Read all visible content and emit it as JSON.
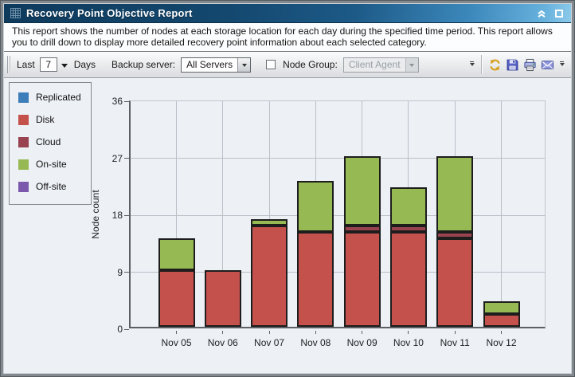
{
  "window": {
    "title": "Recovery Point Objective Report",
    "controls": {
      "collapse": "collapse",
      "maximize": "maximize"
    }
  },
  "description": "This report shows the number of nodes at each storage location for each day during the specified time period. This report allows you to drill down to display more detailed recovery point information about each selected category.",
  "toolbar": {
    "last_label": "Last",
    "last_value": "7",
    "days_label": "Days",
    "backup_server_label": "Backup server:",
    "backup_server_value": "All Servers",
    "node_group_checked": false,
    "node_group_label": "Node Group:",
    "node_group_value": "Client Agent",
    "icons": [
      "refresh-icon",
      "save-icon",
      "print-icon",
      "email-icon"
    ]
  },
  "colors": {
    "titlebar_dark": "#0e3a5c",
    "titlebar_light": "#67b1dd",
    "content_bg": "#edf1f6",
    "grid": "#bcc0c6",
    "axis": "#5c6064"
  },
  "chart_data": {
    "type": "bar",
    "stacked": true,
    "title": "",
    "xlabel": "",
    "ylabel": "Node count",
    "ylim": [
      0,
      36
    ],
    "yticks": [
      0,
      9,
      18,
      27,
      36
    ],
    "grid": true,
    "legend_position": "top-left",
    "categories": [
      "Nov 05",
      "Nov 06",
      "Nov 07",
      "Nov 08",
      "Nov 09",
      "Nov 10",
      "Nov 11",
      "Nov 12"
    ],
    "series": [
      {
        "name": "Replicated",
        "color": "#3d7dba",
        "values": [
          0,
          0,
          0,
          0,
          0,
          0,
          0,
          0
        ]
      },
      {
        "name": "Disk",
        "color": "#c5514d",
        "values": [
          9,
          9,
          16,
          15,
          15,
          15,
          14,
          2
        ]
      },
      {
        "name": "Cloud",
        "color": "#98434f",
        "values": [
          0,
          0,
          0,
          0,
          1,
          1,
          1,
          0
        ]
      },
      {
        "name": "On-site",
        "color": "#97b953",
        "values": [
          5,
          0,
          1,
          8,
          11,
          6,
          12,
          2
        ]
      },
      {
        "name": "Off-site",
        "color": "#7b58ab",
        "values": [
          0,
          0,
          0,
          0,
          0,
          0,
          0,
          0
        ]
      }
    ],
    "totals": [
      14,
      9,
      17,
      23,
      27,
      22,
      27,
      4
    ]
  }
}
